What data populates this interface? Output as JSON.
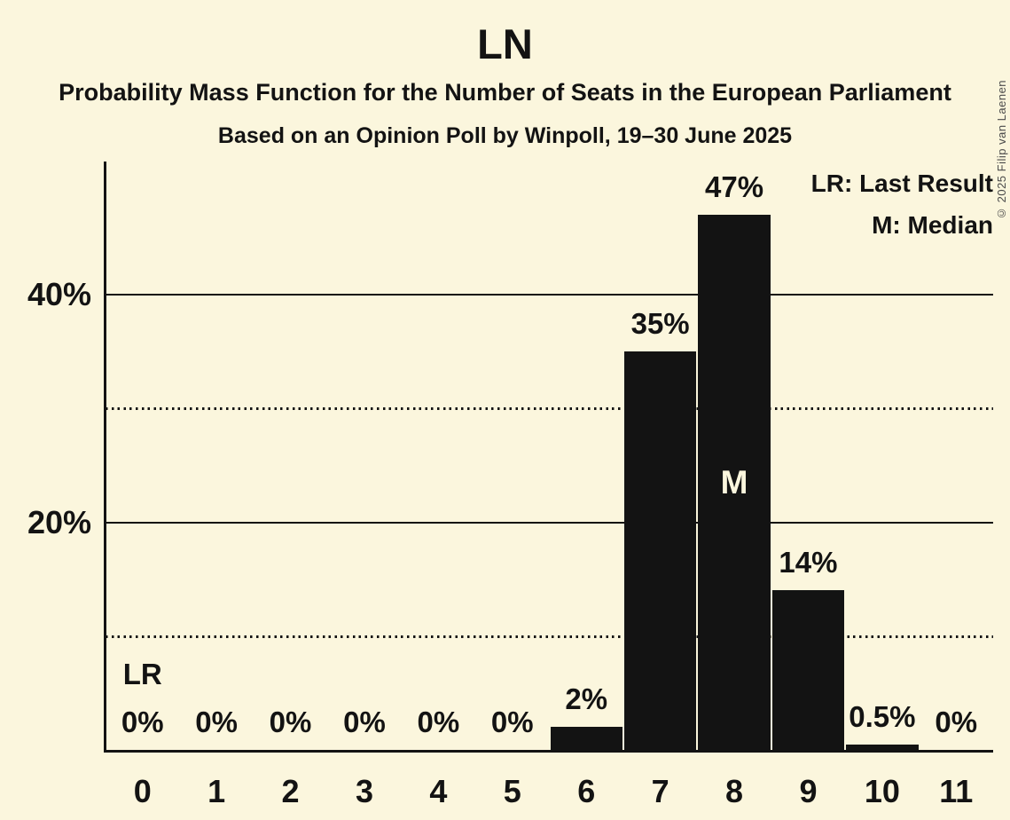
{
  "title": "LN",
  "subtitle": "Probability Mass Function for the Number of Seats in the European Parliament",
  "subsubtitle": "Based on an Opinion Poll by Winpoll, 19–30 June 2025",
  "copyright": "© 2025 Filip van Laenen",
  "legend": {
    "lr": "LR: Last Result",
    "m": "M: Median"
  },
  "colors": {
    "background": "#FBF6DD",
    "bar": "#131313",
    "text": "#131313",
    "grid": "#131313",
    "median_label_text": "#FBF6DD",
    "copyright_text": "#4a4a4a"
  },
  "chart_data": {
    "type": "bar",
    "title": "LN",
    "subtitle": "Probability Mass Function for the Number of Seats in the European Parliament",
    "source_note": "Based on an Opinion Poll by Winpoll, 19–30 June 2025",
    "categories": [
      "0",
      "1",
      "2",
      "3",
      "4",
      "5",
      "6",
      "7",
      "8",
      "9",
      "10",
      "11"
    ],
    "values": [
      0,
      0,
      0,
      0,
      0,
      0,
      2,
      35,
      47,
      14,
      0.5,
      0
    ],
    "value_labels": [
      "0%",
      "0%",
      "0%",
      "0%",
      "0%",
      "0%",
      "2%",
      "35%",
      "47%",
      "14%",
      "0.5%",
      "0%"
    ],
    "xlabel": "",
    "ylabel": "",
    "ylim": [
      0,
      51.8
    ],
    "ytick_values": [
      20,
      40
    ],
    "ytick_labels": [
      "20%",
      "40%"
    ],
    "minor_gridline_values": [
      10,
      30
    ],
    "grid": "major-solid-minor-dotted",
    "legend_entries": [
      "LR: Last Result",
      "M: Median"
    ],
    "annotations": {
      "last_result_category": "0",
      "last_result_label": "LR",
      "median_category": "8",
      "median_label": "M"
    }
  }
}
